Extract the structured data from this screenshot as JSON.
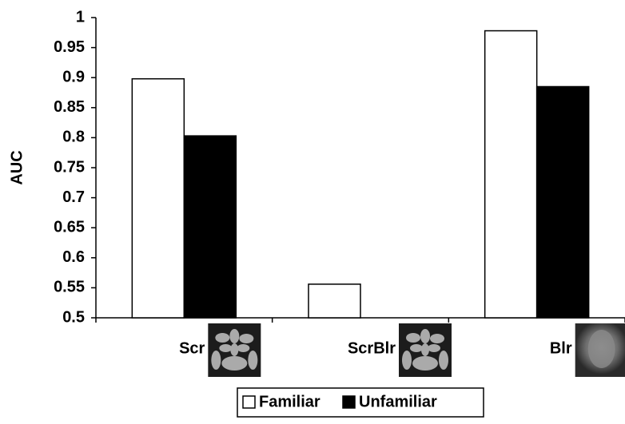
{
  "chart_data": {
    "type": "bar",
    "y_label": "AUC",
    "categories": [
      "Scr",
      "ScrBlr",
      "Blr"
    ],
    "series": [
      {
        "name": "Familiar",
        "color": "#ffffff",
        "values": [
          0.898,
          0.556,
          0.978
        ]
      },
      {
        "name": "Unfamiliar",
        "color": "#000000",
        "values": [
          0.803,
          0.5,
          0.885
        ]
      }
    ],
    "ylim": [
      0.5,
      1
    ],
    "yticks": [
      0.5,
      0.55,
      0.6,
      0.65,
      0.7,
      0.75,
      0.8,
      0.85,
      0.9,
      0.95,
      1
    ],
    "legend": "bottom"
  }
}
